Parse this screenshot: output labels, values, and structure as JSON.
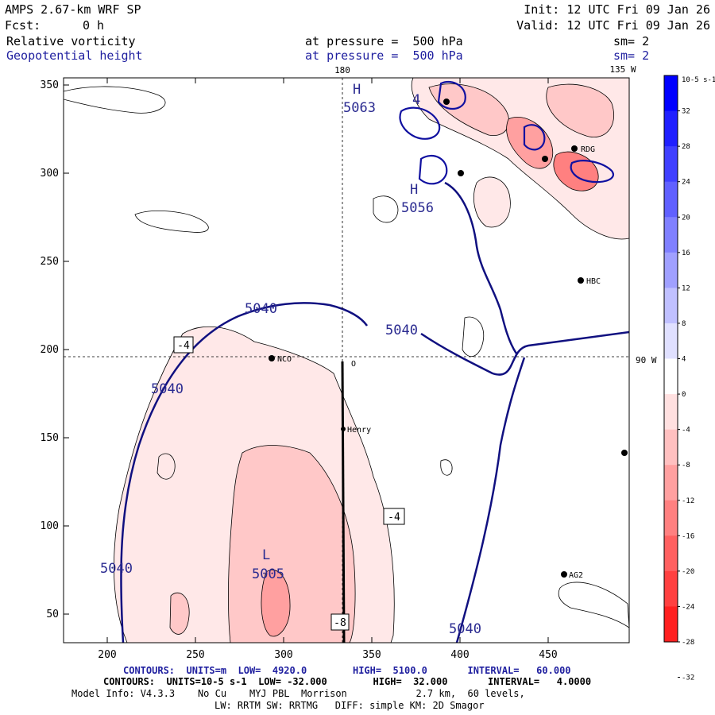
{
  "header": {
    "model": "AMPS 2.67-km WRF SP",
    "init": "Init: 12 UTC Fri 09 Jan 26",
    "fcst_label": "Fcst:",
    "fcst_value": "0 h",
    "valid": "Valid: 12 UTC Fri 09 Jan 26",
    "field1": {
      "name": "Relative vorticity",
      "pressure_text": "at pressure =  500 hPa",
      "sm": "sm= 2"
    },
    "field2": {
      "name": "Geopotential height",
      "pressure_text": "at pressure =  500 hPa",
      "sm": "sm= 2"
    }
  },
  "map": {
    "x_ticks": [
      "200",
      "250",
      "300",
      "350",
      "400",
      "450"
    ],
    "y_ticks": [
      "350",
      "300",
      "250",
      "200",
      "150",
      "100",
      "50"
    ],
    "lon_labels": {
      "top_180": "180",
      "top_135w": "135 W",
      "right_90w": "90 W"
    },
    "highs": [
      {
        "letter": "H",
        "value": "5063"
      },
      {
        "letter": "H",
        "value": "5056"
      }
    ],
    "low": {
      "letter": "L",
      "value": "5005"
    },
    "height_contour_labels": [
      "5040",
      "5040",
      "5040",
      "5040",
      "5040"
    ],
    "vorticity_box_labels": [
      "-4",
      "-4",
      "-8"
    ],
    "partial_label": "4",
    "stations": [
      "NCO",
      "Henry",
      "RDG",
      "HBC",
      "AG2"
    ],
    "station_O": "O"
  },
  "colorbar": {
    "unit": "10-5 s-1",
    "labels": [
      "32",
      "28",
      "24",
      "20",
      "16",
      "12",
      "8",
      "4",
      "0",
      "-4",
      "-8",
      "-12",
      "-16",
      "-20",
      "-24",
      "-28",
      "-32"
    ],
    "colors": [
      "#0000ff",
      "#2020ff",
      "#4040ff",
      "#6060ff",
      "#8080ff",
      "#a0a0ff",
      "#c0c0ff",
      "#e0e0ff",
      "#ffffff",
      "#ffe0e0",
      "#ffc0c0",
      "#ffa0a0",
      "#ff8080",
      "#ff6060",
      "#ff4040",
      "#ff2020"
    ]
  },
  "footer": {
    "line1": "CONTOURS:  UNITS=m  LOW=  4920.0        HIGH=  5100.0       INTERVAL=   60.000",
    "line2": "CONTOURS:  UNITS=10-5 s-1  LOW= -32.000        HIGH=  32.000       INTERVAL=   4.0000",
    "line3": "Model Info: V4.3.3    No Cu    MYJ PBL  Morrison            2.7 km,  60 levels,",
    "line4": "LW: RRTM SW: RRTMG   DIFF: simple KM: 2D Smagor"
  }
}
